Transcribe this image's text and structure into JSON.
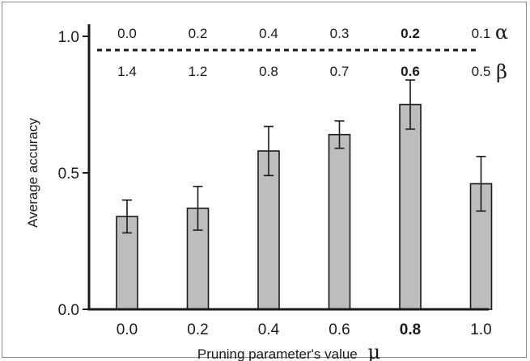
{
  "chart_data": {
    "type": "bar",
    "xlabel": "Pruning parameter's value",
    "xlabel_symbol": "μ",
    "ylabel": "Average accuracy",
    "ylim": [
      0,
      1
    ],
    "grid": false,
    "categories": [
      "0.0",
      "0.2",
      "0.4",
      "0.6",
      "0.8",
      "1.0"
    ],
    "highlight_category": "0.8",
    "values": [
      0.34,
      0.37,
      0.58,
      0.64,
      0.75,
      0.46
    ],
    "error": [
      0.06,
      0.08,
      0.09,
      0.05,
      0.09,
      0.1
    ],
    "y_ticks": [
      "0.0",
      "0.5",
      "1.0"
    ],
    "y_tick_values": [
      0.0,
      0.5,
      1.0
    ],
    "bar_color": "#bdbdbd",
    "bar_edge_color": "#1a1a1a",
    "parameter_rows": [
      {
        "symbol": "α",
        "values": [
          "0.0",
          "0.2",
          "0.4",
          "0.3",
          "0.2",
          "0.1"
        ]
      },
      {
        "symbol": "β",
        "values": [
          "1.4",
          "1.2",
          "0.8",
          "0.7",
          "0.6",
          "0.5"
        ]
      }
    ]
  }
}
